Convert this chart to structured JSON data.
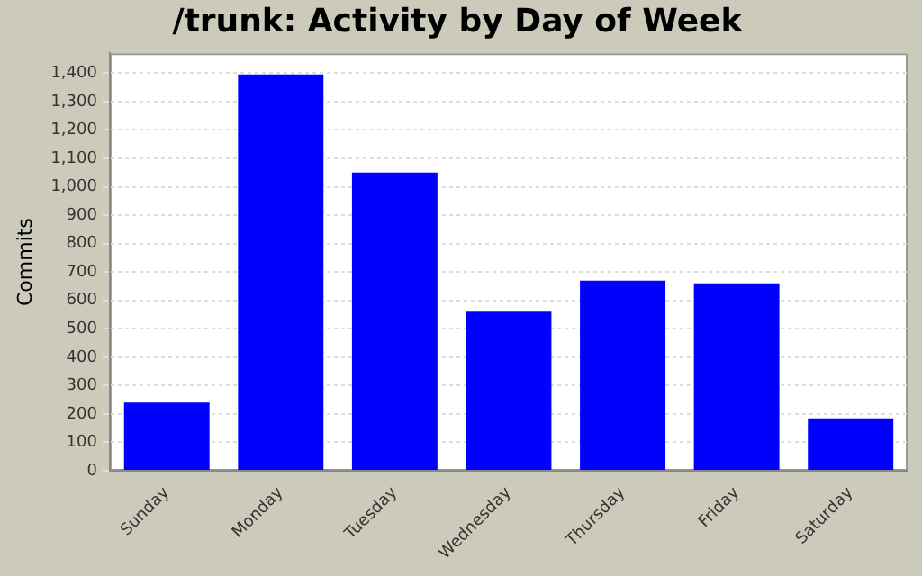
{
  "chart_data": {
    "type": "bar",
    "title": "/trunk: Activity by Day of Week",
    "ylabel": "Commits",
    "categories": [
      "Sunday",
      "Monday",
      "Tuesday",
      "Wednesday",
      "Thursday",
      "Friday",
      "Saturday"
    ],
    "values": [
      240,
      1395,
      1050,
      560,
      670,
      660,
      185
    ],
    "color": "#0000ff",
    "ylim": [
      0,
      1470
    ],
    "yticks": [
      0,
      100,
      200,
      300,
      400,
      500,
      600,
      700,
      800,
      900,
      {
        "value": 1000,
        "label": "1,000"
      },
      {
        "value": 1100,
        "label": "1,100"
      },
      {
        "value": 1200,
        "label": "1,200"
      },
      {
        "value": 1300,
        "label": "1,300"
      },
      {
        "value": 1400,
        "label": "1,400"
      }
    ],
    "grid": "y"
  }
}
